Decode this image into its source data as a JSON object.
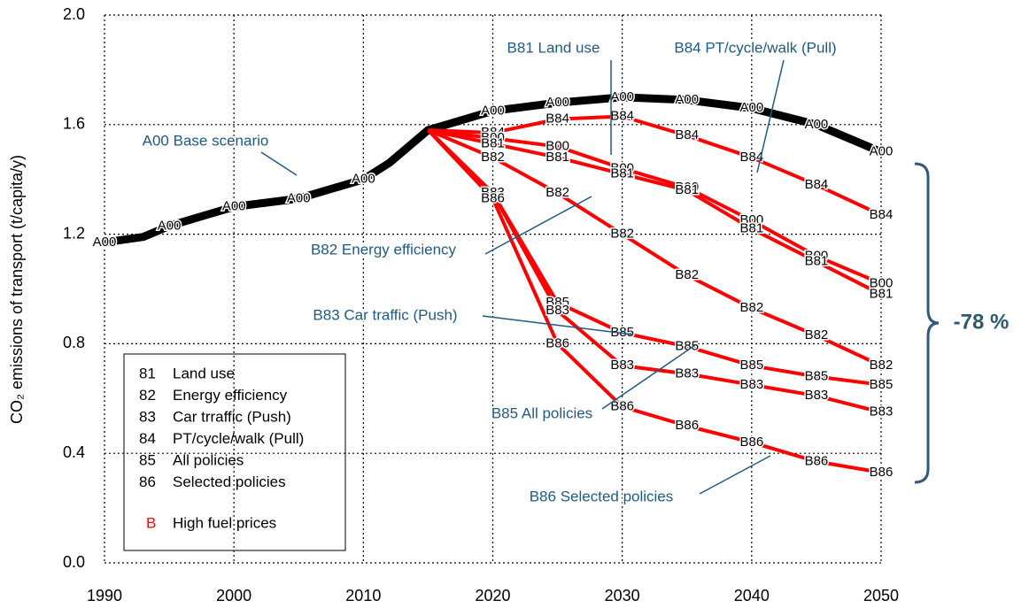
{
  "chart_data": {
    "type": "line",
    "y_label": "CO₂ emissions of transport (t/capita/y)",
    "xlim": [
      1990,
      2050
    ],
    "xticks": [
      1990,
      2000,
      2010,
      2020,
      2030,
      2040,
      2050
    ],
    "ylim": [
      0,
      2
    ],
    "yticks": [
      {
        "value": 0,
        "label": "0.0"
      },
      {
        "value": 0.4,
        "label": "0.4"
      },
      {
        "value": 0.8,
        "label": "0.8"
      },
      {
        "value": 1.2,
        "label": "1.2"
      },
      {
        "value": 1.6,
        "label": "1.6"
      },
      {
        "value": 2,
        "label": "2.0"
      }
    ],
    "grid": true,
    "series": [
      {
        "name": "A00",
        "color": "#000000",
        "x": [
          1990,
          1993,
          1995,
          2000,
          2005,
          2010,
          2012,
          2015,
          2020,
          2025,
          2030,
          2035,
          2040,
          2045,
          2050
        ],
        "values": [
          1.17,
          1.19,
          1.23,
          1.3,
          1.33,
          1.4,
          1.46,
          1.58,
          1.65,
          1.68,
          1.7,
          1.69,
          1.66,
          1.6,
          1.5
        ]
      },
      {
        "name": "B84",
        "color": "#ff0000",
        "x": [
          2015,
          2020,
          2025,
          2030,
          2035,
          2040,
          2045,
          2050
        ],
        "values": [
          1.58,
          1.57,
          1.62,
          1.63,
          1.56,
          1.48,
          1.38,
          1.27
        ]
      },
      {
        "name": "B00",
        "color": "#ff0000",
        "x": [
          2015,
          2020,
          2025,
          2030,
          2035,
          2040,
          2045,
          2050
        ],
        "values": [
          1.58,
          1.55,
          1.52,
          1.44,
          1.37,
          1.25,
          1.12,
          1.02
        ]
      },
      {
        "name": "B81",
        "color": "#ff0000",
        "x": [
          2015,
          2020,
          2025,
          2030,
          2035,
          2040,
          2045,
          2050
        ],
        "values": [
          1.58,
          1.53,
          1.48,
          1.42,
          1.36,
          1.22,
          1.1,
          0.98
        ]
      },
      {
        "name": "B82",
        "color": "#ff0000",
        "x": [
          2015,
          2020,
          2025,
          2030,
          2035,
          2040,
          2045,
          2050
        ],
        "values": [
          1.58,
          1.48,
          1.35,
          1.2,
          1.05,
          0.93,
          0.83,
          0.72
        ]
      },
      {
        "name": "B85",
        "color": "#ff0000",
        "x": [
          2015,
          2020,
          2025,
          2030,
          2035,
          2040,
          2045,
          2050
        ],
        "values": [
          1.58,
          1.35,
          0.95,
          0.84,
          0.79,
          0.72,
          0.68,
          0.65
        ]
      },
      {
        "name": "B83",
        "color": "#ff0000",
        "x": [
          2015,
          2020,
          2025,
          2030,
          2035,
          2040,
          2045,
          2050
        ],
        "values": [
          1.58,
          1.35,
          0.92,
          0.72,
          0.69,
          0.65,
          0.61,
          0.55
        ]
      },
      {
        "name": "B86",
        "color": "#ff0000",
        "x": [
          2015,
          2020,
          2025,
          2030,
          2035,
          2040,
          2045,
          2050
        ],
        "values": [
          1.58,
          1.33,
          0.8,
          0.57,
          0.5,
          0.44,
          0.37,
          0.33
        ]
      }
    ],
    "annotations": [
      "B81 Land use",
      "B84 PT/cycle/walk (Pull)",
      "A00 Base scenario",
      "B82 Energy efficiency",
      "B83 Car traffic (Push)",
      "B85 All policies",
      "B86 Selected policies",
      "-78 %"
    ],
    "legend_notes": [
      {
        "code": "81",
        "text": "Land use"
      },
      {
        "code": "82",
        "text": "Energy efficiency"
      },
      {
        "code": "83",
        "text": "Car trraffic (Push)"
      },
      {
        "code": "84",
        "text": "PT/cycle/walk (Pull)"
      },
      {
        "code": "85",
        "text": "All policies"
      },
      {
        "code": "86",
        "text": "Selected policies"
      },
      {
        "code": "B",
        "text": "High fuel prices"
      }
    ]
  }
}
